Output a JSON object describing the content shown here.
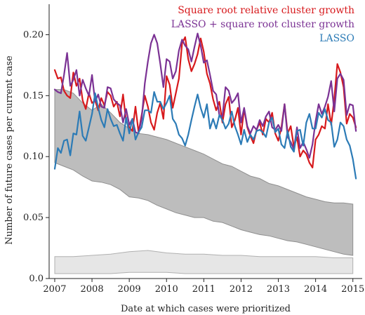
{
  "chart_data": {
    "type": "line",
    "xlabel": "Date at which cases were prioritized",
    "ylabel": "Number of future cases per current case",
    "xlim": [
      2006.85,
      2015.25
    ],
    "ylim": [
      0,
      0.225
    ],
    "xticks": [
      2007,
      2008,
      2009,
      2010,
      2011,
      2012,
      2013,
      2014,
      2015
    ],
    "yticks": [
      0.0,
      0.05,
      0.1,
      0.15,
      0.2
    ],
    "ytick_labels": [
      "0.0",
      "0.05",
      "0.10",
      "0.15",
      "0.20"
    ],
    "grid": false,
    "legend_position": "top-right",
    "band_upper": {
      "x": [
        2007.0,
        2007.25,
        2007.5,
        2007.75,
        2008.0,
        2008.25,
        2008.5,
        2008.75,
        2009.0,
        2009.25,
        2009.5,
        2009.75,
        2010.0,
        2010.25,
        2010.5,
        2010.75,
        2011.0,
        2011.25,
        2011.5,
        2011.75,
        2012.0,
        2012.25,
        2012.5,
        2012.75,
        2013.0,
        2013.25,
        2013.5,
        2013.75,
        2014.0,
        2014.25,
        2014.5,
        2014.75,
        2015.0
      ],
      "upper": [
        0.155,
        0.155,
        0.152,
        0.144,
        0.138,
        0.143,
        0.136,
        0.128,
        0.123,
        0.119,
        0.118,
        0.116,
        0.114,
        0.111,
        0.108,
        0.105,
        0.102,
        0.098,
        0.094,
        0.092,
        0.088,
        0.084,
        0.082,
        0.078,
        0.076,
        0.073,
        0.07,
        0.067,
        0.065,
        0.063,
        0.062,
        0.062,
        0.061
      ],
      "lower": [
        0.095,
        0.092,
        0.089,
        0.084,
        0.08,
        0.079,
        0.077,
        0.073,
        0.067,
        0.066,
        0.064,
        0.06,
        0.057,
        0.054,
        0.052,
        0.05,
        0.05,
        0.047,
        0.046,
        0.043,
        0.04,
        0.038,
        0.036,
        0.035,
        0.033,
        0.031,
        0.03,
        0.028,
        0.026,
        0.024,
        0.022,
        0.02,
        0.019
      ]
    },
    "band_lower": {
      "x": [
        2007.0,
        2007.5,
        2008.0,
        2008.5,
        2009.0,
        2009.5,
        2010.0,
        2010.5,
        2011.0,
        2011.5,
        2012.0,
        2012.5,
        2013.0,
        2013.5,
        2014.0,
        2014.5,
        2015.0
      ],
      "upper": [
        0.018,
        0.018,
        0.019,
        0.02,
        0.022,
        0.023,
        0.021,
        0.02,
        0.02,
        0.019,
        0.019,
        0.018,
        0.018,
        0.018,
        0.018,
        0.017,
        0.017
      ],
      "lower": [
        0.004,
        0.004,
        0.004,
        0.004,
        0.005,
        0.005,
        0.005,
        0.004,
        0.004,
        0.004,
        0.004,
        0.004,
        0.004,
        0.004,
        0.004,
        0.004,
        0.004
      ]
    },
    "series": [
      {
        "name": "Square root relative cluster growth",
        "color": "#d7191c",
        "x": [
          2007.0,
          2007.083,
          2007.167,
          2007.25,
          2007.333,
          2007.417,
          2007.5,
          2007.583,
          2007.667,
          2007.75,
          2007.833,
          2007.917,
          2008.0,
          2008.083,
          2008.167,
          2008.25,
          2008.333,
          2008.417,
          2008.5,
          2008.583,
          2008.667,
          2008.75,
          2008.833,
          2008.917,
          2009.0,
          2009.083,
          2009.167,
          2009.25,
          2009.333,
          2009.417,
          2009.5,
          2009.583,
          2009.667,
          2009.75,
          2009.833,
          2009.917,
          2010.0,
          2010.083,
          2010.167,
          2010.25,
          2010.333,
          2010.417,
          2010.5,
          2010.583,
          2010.667,
          2010.75,
          2010.833,
          2010.917,
          2011.0,
          2011.083,
          2011.167,
          2011.25,
          2011.333,
          2011.417,
          2011.5,
          2011.583,
          2011.667,
          2011.75,
          2011.833,
          2011.917,
          2012.0,
          2012.083,
          2012.167,
          2012.25,
          2012.333,
          2012.417,
          2012.5,
          2012.583,
          2012.667,
          2012.75,
          2012.833,
          2012.917,
          2013.0,
          2013.083,
          2013.167,
          2013.25,
          2013.333,
          2013.417,
          2013.5,
          2013.583,
          2013.667,
          2013.75,
          2013.833,
          2013.917,
          2014.0,
          2014.083,
          2014.167,
          2014.25,
          2014.333,
          2014.417,
          2014.5,
          2014.583,
          2014.667,
          2014.75,
          2014.833,
          2014.917,
          2015.0,
          2015.083
        ],
        "values": [
          0.171,
          0.164,
          0.165,
          0.154,
          0.15,
          0.148,
          0.169,
          0.158,
          0.164,
          0.146,
          0.139,
          0.152,
          0.144,
          0.146,
          0.138,
          0.148,
          0.142,
          0.153,
          0.15,
          0.141,
          0.145,
          0.133,
          0.151,
          0.129,
          0.124,
          0.121,
          0.141,
          0.12,
          0.134,
          0.15,
          0.141,
          0.128,
          0.122,
          0.136,
          0.144,
          0.131,
          0.166,
          0.159,
          0.14,
          0.152,
          0.164,
          0.193,
          0.198,
          0.18,
          0.17,
          0.176,
          0.184,
          0.197,
          0.186,
          0.168,
          0.16,
          0.147,
          0.138,
          0.145,
          0.128,
          0.143,
          0.149,
          0.124,
          0.13,
          0.14,
          0.118,
          0.139,
          0.124,
          0.117,
          0.111,
          0.122,
          0.128,
          0.118,
          0.131,
          0.128,
          0.136,
          0.119,
          0.113,
          0.124,
          0.143,
          0.119,
          0.125,
          0.108,
          0.116,
          0.1,
          0.105,
          0.102,
          0.095,
          0.091,
          0.114,
          0.118,
          0.125,
          0.123,
          0.143,
          0.126,
          0.147,
          0.176,
          0.169,
          0.157,
          0.127,
          0.135,
          0.132,
          0.124
        ]
      },
      {
        "name": "LASSO + square root cluster growth",
        "color": "#7b3294",
        "x": [
          2007.0,
          2007.083,
          2007.167,
          2007.25,
          2007.333,
          2007.417,
          2007.5,
          2007.583,
          2007.667,
          2007.75,
          2007.833,
          2007.917,
          2008.0,
          2008.083,
          2008.167,
          2008.25,
          2008.333,
          2008.417,
          2008.5,
          2008.583,
          2008.667,
          2008.75,
          2008.833,
          2008.917,
          2009.0,
          2009.083,
          2009.167,
          2009.25,
          2009.333,
          2009.417,
          2009.5,
          2009.583,
          2009.667,
          2009.75,
          2009.833,
          2009.917,
          2010.0,
          2010.083,
          2010.167,
          2010.25,
          2010.333,
          2010.417,
          2010.5,
          2010.583,
          2010.667,
          2010.75,
          2010.833,
          2010.917,
          2011.0,
          2011.083,
          2011.167,
          2011.25,
          2011.333,
          2011.417,
          2011.5,
          2011.583,
          2011.667,
          2011.75,
          2011.833,
          2011.917,
          2012.0,
          2012.083,
          2012.167,
          2012.25,
          2012.333,
          2012.417,
          2012.5,
          2012.583,
          2012.667,
          2012.75,
          2012.833,
          2012.917,
          2013.0,
          2013.083,
          2013.167,
          2013.25,
          2013.333,
          2013.417,
          2013.5,
          2013.583,
          2013.667,
          2013.75,
          2013.833,
          2013.917,
          2014.0,
          2014.083,
          2014.167,
          2014.25,
          2014.333,
          2014.417,
          2014.5,
          2014.583,
          2014.667,
          2014.75,
          2014.833,
          2014.917,
          2015.0,
          2015.083
        ],
        "values": [
          0.155,
          0.153,
          0.152,
          0.167,
          0.185,
          0.158,
          0.163,
          0.171,
          0.15,
          0.163,
          0.156,
          0.15,
          0.167,
          0.145,
          0.151,
          0.141,
          0.14,
          0.157,
          0.156,
          0.147,
          0.144,
          0.142,
          0.128,
          0.139,
          0.126,
          0.131,
          0.12,
          0.119,
          0.131,
          0.16,
          0.178,
          0.193,
          0.2,
          0.193,
          0.176,
          0.157,
          0.18,
          0.178,
          0.164,
          0.17,
          0.187,
          0.196,
          0.191,
          0.188,
          0.178,
          0.19,
          0.201,
          0.191,
          0.177,
          0.179,
          0.167,
          0.154,
          0.151,
          0.134,
          0.133,
          0.157,
          0.154,
          0.144,
          0.147,
          0.152,
          0.128,
          0.14,
          0.125,
          0.119,
          0.125,
          0.122,
          0.13,
          0.125,
          0.133,
          0.137,
          0.124,
          0.122,
          0.126,
          0.121,
          0.143,
          0.116,
          0.112,
          0.106,
          0.124,
          0.107,
          0.112,
          0.106,
          0.099,
          0.11,
          0.129,
          0.143,
          0.135,
          0.141,
          0.149,
          0.162,
          0.137,
          0.164,
          0.168,
          0.163,
          0.134,
          0.143,
          0.142,
          0.121
        ]
      },
      {
        "name": "LASSO",
        "color": "#2c7bb6",
        "x": [
          2007.0,
          2007.083,
          2007.167,
          2007.25,
          2007.333,
          2007.417,
          2007.5,
          2007.583,
          2007.667,
          2007.75,
          2007.833,
          2007.917,
          2008.0,
          2008.083,
          2008.167,
          2008.25,
          2008.333,
          2008.417,
          2008.5,
          2008.583,
          2008.667,
          2008.75,
          2008.833,
          2008.917,
          2009.0,
          2009.083,
          2009.167,
          2009.25,
          2009.333,
          2009.417,
          2009.5,
          2009.583,
          2009.667,
          2009.75,
          2009.833,
          2009.917,
          2010.0,
          2010.083,
          2010.167,
          2010.25,
          2010.333,
          2010.417,
          2010.5,
          2010.583,
          2010.667,
          2010.75,
          2010.833,
          2010.917,
          2011.0,
          2011.083,
          2011.167,
          2011.25,
          2011.333,
          2011.417,
          2011.5,
          2011.583,
          2011.667,
          2011.75,
          2011.833,
          2011.917,
          2012.0,
          2012.083,
          2012.167,
          2012.25,
          2012.333,
          2012.417,
          2012.5,
          2012.583,
          2012.667,
          2012.75,
          2012.833,
          2012.917,
          2013.0,
          2013.083,
          2013.167,
          2013.25,
          2013.333,
          2013.417,
          2013.5,
          2013.583,
          2013.667,
          2013.75,
          2013.833,
          2013.917,
          2014.0,
          2014.083,
          2014.167,
          2014.25,
          2014.333,
          2014.417,
          2014.5,
          2014.583,
          2014.667,
          2014.75,
          2014.833,
          2014.917,
          2015.0,
          2015.083
        ],
        "values": [
          0.09,
          0.107,
          0.103,
          0.113,
          0.114,
          0.101,
          0.119,
          0.118,
          0.137,
          0.117,
          0.113,
          0.124,
          0.135,
          0.152,
          0.14,
          0.13,
          0.124,
          0.139,
          0.131,
          0.125,
          0.126,
          0.119,
          0.113,
          0.132,
          0.119,
          0.131,
          0.114,
          0.12,
          0.124,
          0.138,
          0.138,
          0.136,
          0.153,
          0.145,
          0.145,
          0.139,
          0.144,
          0.15,
          0.131,
          0.127,
          0.118,
          0.115,
          0.109,
          0.118,
          0.13,
          0.141,
          0.151,
          0.14,
          0.132,
          0.143,
          0.123,
          0.131,
          0.123,
          0.134,
          0.13,
          0.123,
          0.127,
          0.137,
          0.125,
          0.118,
          0.11,
          0.122,
          0.112,
          0.118,
          0.114,
          0.121,
          0.122,
          0.12,
          0.116,
          0.128,
          0.132,
          0.12,
          0.123,
          0.11,
          0.107,
          0.121,
          0.108,
          0.104,
          0.121,
          0.122,
          0.109,
          0.128,
          0.135,
          0.123,
          0.123,
          0.136,
          0.132,
          0.139,
          0.13,
          0.128,
          0.108,
          0.114,
          0.128,
          0.125,
          0.114,
          0.109,
          0.098,
          0.082
        ]
      }
    ]
  }
}
